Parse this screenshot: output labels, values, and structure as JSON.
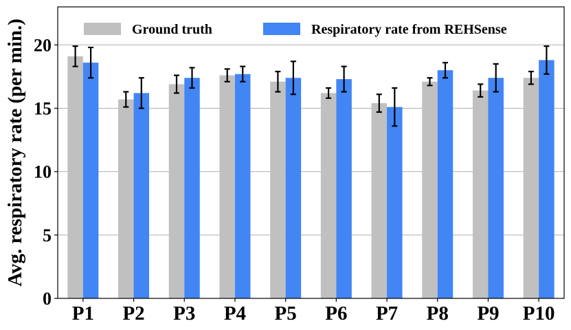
{
  "chart_data": {
    "type": "bar",
    "title": "",
    "xlabel": "",
    "ylabel": "Avg. respiratory rate (per min.)",
    "ylim": [
      0,
      23
    ],
    "yticks": [
      0,
      5,
      10,
      15,
      20
    ],
    "grid": "horizontal",
    "legend_position": "top",
    "categories": [
      "P1",
      "P2",
      "P3",
      "P4",
      "P5",
      "P6",
      "P7",
      "P8",
      "P9",
      "P10"
    ],
    "series": [
      {
        "name": "Ground truth",
        "color": "#c0c0c0",
        "values": [
          19.1,
          15.7,
          16.9,
          17.6,
          17.1,
          16.2,
          15.4,
          17.1,
          16.4,
          17.4
        ],
        "errors": [
          0.8,
          0.6,
          0.7,
          0.5,
          0.8,
          0.4,
          0.7,
          0.3,
          0.5,
          0.5
        ]
      },
      {
        "name": "Respiratory rate from REHSense",
        "color": "#4285f4",
        "values": [
          18.6,
          16.2,
          17.4,
          17.7,
          17.4,
          17.3,
          15.1,
          18.0,
          17.4,
          18.8
        ],
        "errors": [
          1.2,
          1.2,
          0.8,
          0.6,
          1.3,
          1.0,
          1.5,
          0.6,
          1.1,
          1.1
        ]
      }
    ]
  }
}
